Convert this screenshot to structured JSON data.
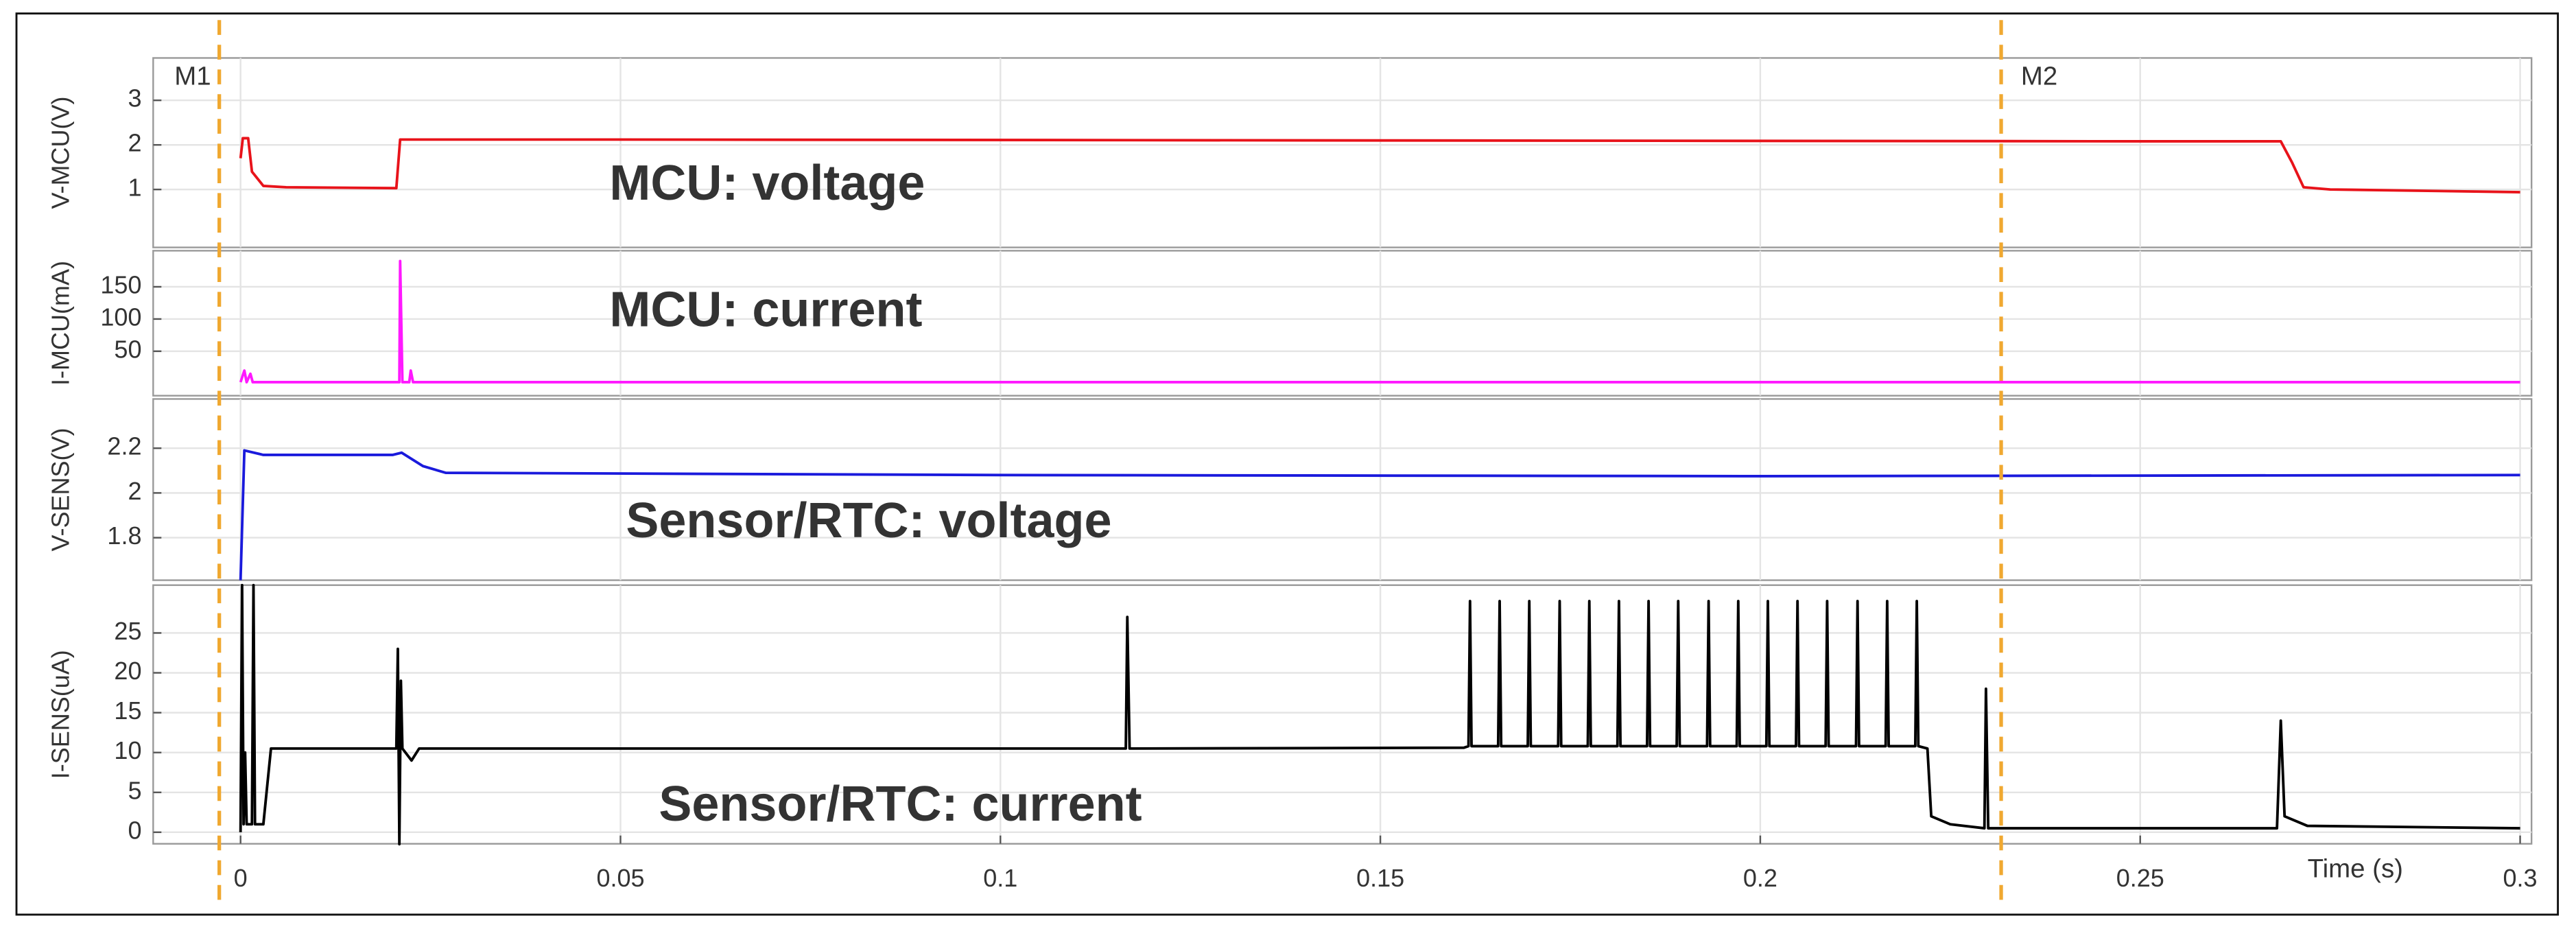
{
  "chart_data": [
    {
      "type": "line",
      "ylabel": "V-MCU(V)",
      "annotation": "MCU: voltage",
      "color": "#e8131a",
      "xlim": [
        -0.0115,
        0.3015
      ],
      "ylim": [
        -0.3,
        3.95
      ],
      "yticks": [
        1,
        2,
        3
      ],
      "grid": true,
      "markers": [
        {
          "label": "M1",
          "x": -0.0028
        },
        {
          "label": "M2",
          "x": 0.2317
        }
      ],
      "x": [
        0,
        0.0003,
        0.001,
        0.0015,
        0.003,
        0.006,
        0.0205,
        0.021,
        0.05,
        0.15,
        0.25,
        0.2685,
        0.27,
        0.2715,
        0.275,
        0.3
      ],
      "values": [
        1.7,
        2.15,
        2.15,
        1.4,
        1.08,
        1.05,
        1.03,
        2.12,
        2.12,
        2.1,
        2.08,
        2.08,
        1.6,
        1.05,
        1.0,
        0.94
      ]
    },
    {
      "type": "line",
      "ylabel": "I-MCU(mA)",
      "annotation": "MCU: current",
      "color": "#ff19ff",
      "xlim": [
        -0.0115,
        0.3015
      ],
      "ylim": [
        -19,
        206
      ],
      "yticks": [
        50,
        100,
        150
      ],
      "grid": true,
      "x": [
        0,
        0.0005,
        0.0008,
        0.0013,
        0.0016,
        0.0209,
        0.021,
        0.0213,
        0.0222,
        0.0224,
        0.0227,
        0.3
      ],
      "values": [
        2,
        20,
        2,
        15,
        2,
        2,
        190,
        2,
        2,
        20,
        2,
        2
      ]
    },
    {
      "type": "line",
      "ylabel": "V-SENS(V)",
      "annotation": "Sensor/RTC: voltage",
      "color": "#1a1adc",
      "xlim": [
        -0.0115,
        0.3015
      ],
      "ylim": [
        1.61,
        2.42
      ],
      "yticks": [
        1.8,
        2,
        2.2
      ],
      "grid": true,
      "x": [
        0,
        0.0005,
        0.003,
        0.02,
        0.0212,
        0.024,
        0.027,
        0.1,
        0.2,
        0.3
      ],
      "values": [
        1.61,
        2.19,
        2.17,
        2.17,
        2.18,
        2.12,
        2.09,
        2.08,
        2.075,
        2.08
      ]
    },
    {
      "type": "line",
      "ylabel": "I-SENS(uA)",
      "annotation": "Sensor/RTC: current",
      "color": "#000000",
      "xlabel": "Time (s)",
      "xlim": [
        -0.0115,
        0.3015
      ],
      "ylim": [
        -1.45,
        31
      ],
      "yticks": [
        0,
        5,
        10,
        15,
        20,
        25
      ],
      "grid": true,
      "xticks": [
        0,
        0.05,
        0.1,
        0.15,
        0.2,
        0.25,
        0.3
      ],
      "x": [
        0,
        0.0002,
        0.0004,
        0.0006,
        0.0008,
        0.0015,
        0.0017,
        0.0019,
        0.003,
        0.004,
        0.0205,
        0.0207,
        0.0209,
        0.0211,
        0.0213,
        0.0225,
        0.0235,
        0.1165,
        0.1167,
        0.117,
        0.161,
        0.1616,
        0.1618,
        0.162,
        0.1655,
        0.1657,
        0.1659,
        0.1694,
        0.1696,
        0.1698,
        0.1734,
        0.1736,
        0.1738,
        0.1773,
        0.1775,
        0.1777,
        0.1812,
        0.1814,
        0.1816,
        0.1851,
        0.1853,
        0.1855,
        0.189,
        0.1892,
        0.1894,
        0.193,
        0.1932,
        0.1934,
        0.1969,
        0.1971,
        0.1973,
        0.2008,
        0.201,
        0.2012,
        0.2047,
        0.2049,
        0.2051,
        0.2086,
        0.2088,
        0.209,
        0.2126,
        0.2128,
        0.213,
        0.2165,
        0.2167,
        0.2169,
        0.2204,
        0.2206,
        0.2208,
        0.222,
        0.2225,
        0.225,
        0.2295,
        0.2297,
        0.23,
        0.268,
        0.2685,
        0.269,
        0.272,
        0.3
      ],
      "values": [
        0,
        31,
        1,
        10,
        1,
        1,
        31,
        1,
        1,
        10.5,
        10.5,
        23,
        -1.5,
        19,
        10.5,
        9,
        10.5,
        10.5,
        27,
        10.5,
        10.6,
        10.8,
        29,
        10.8,
        10.8,
        29,
        10.8,
        10.8,
        29,
        10.8,
        10.8,
        29,
        10.8,
        10.8,
        29,
        10.8,
        10.8,
        29,
        10.8,
        10.8,
        29,
        10.8,
        10.8,
        29,
        10.8,
        10.8,
        29,
        10.8,
        10.8,
        29,
        10.8,
        10.8,
        29,
        10.8,
        10.8,
        29,
        10.8,
        10.8,
        29,
        10.8,
        10.8,
        29,
        10.8,
        10.8,
        29,
        10.8,
        10.8,
        29,
        10.8,
        10.5,
        2,
        1,
        0.5,
        18,
        0.5,
        0.5,
        14,
        2,
        0.8,
        0.5
      ]
    }
  ]
}
